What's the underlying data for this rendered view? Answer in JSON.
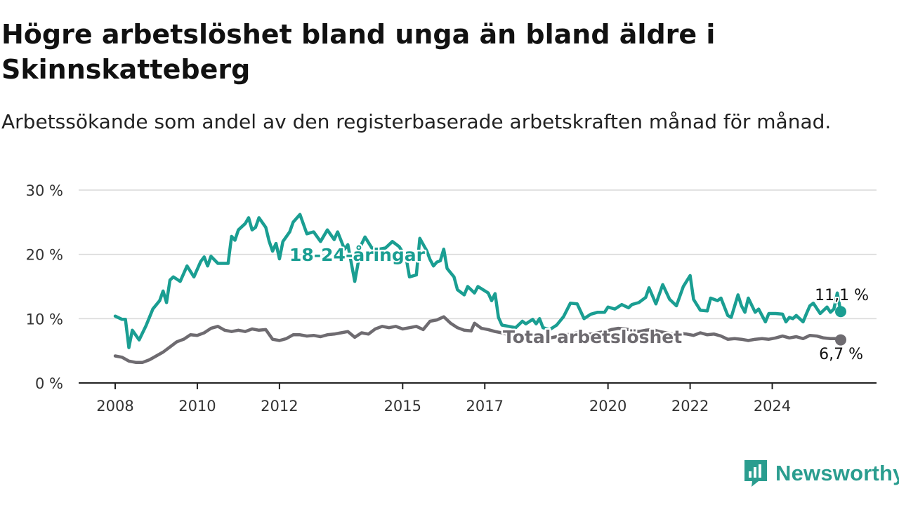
{
  "title": "Högre arbetslöshet bland unga än bland äldre i Skinnskatteberg",
  "subtitle": "Arbetssökande som andel av den registerbaserade arbetskraften månad för månad.",
  "brand": {
    "name": "Newsworthy",
    "icon": "newsworthy-logo-icon"
  },
  "colors": {
    "youth": "#1a9e92",
    "total": "#6e6b70",
    "grid": "#d9d9d9",
    "axis": "#222222"
  },
  "chart_data": {
    "type": "line",
    "x_ticks": [
      "2008",
      "2010",
      "2012",
      "2015",
      "2017",
      "2020",
      "2022",
      "2024"
    ],
    "y_ticks": [
      "0 %",
      "10 %",
      "20 %",
      "30 %"
    ],
    "ylim": [
      0,
      30
    ],
    "xlim": [
      "2008-01",
      "2025-09"
    ],
    "grid": true,
    "series": [
      {
        "name": "18-24-åringar",
        "end_label": "11,1 %",
        "points": [
          [
            "2008-01",
            10.4
          ],
          [
            "2008-03",
            9.9
          ],
          [
            "2008-04",
            9.9
          ],
          [
            "2008-05",
            5.5
          ],
          [
            "2008-06",
            8.2
          ],
          [
            "2008-08",
            6.7
          ],
          [
            "2008-10",
            8.9
          ],
          [
            "2008-12",
            11.5
          ],
          [
            "2009-02",
            12.8
          ],
          [
            "2009-03",
            14.3
          ],
          [
            "2009-04",
            12.5
          ],
          [
            "2009-05",
            16.0
          ],
          [
            "2009-06",
            16.5
          ],
          [
            "2009-08",
            15.8
          ],
          [
            "2009-10",
            18.2
          ],
          [
            "2009-12",
            16.5
          ],
          [
            "2010-02",
            18.9
          ],
          [
            "2010-03",
            19.6
          ],
          [
            "2010-04",
            18.2
          ],
          [
            "2010-05",
            19.7
          ],
          [
            "2010-07",
            18.6
          ],
          [
            "2010-10",
            18.6
          ],
          [
            "2010-11",
            22.8
          ],
          [
            "2010-12",
            22.2
          ],
          [
            "2011-01",
            23.8
          ],
          [
            "2011-03",
            24.8
          ],
          [
            "2011-04",
            25.7
          ],
          [
            "2011-05",
            23.8
          ],
          [
            "2011-06",
            24.2
          ],
          [
            "2011-07",
            25.7
          ],
          [
            "2011-09",
            24.2
          ],
          [
            "2011-10",
            22.0
          ],
          [
            "2011-11",
            20.5
          ],
          [
            "2011-12",
            21.7
          ],
          [
            "2012-01",
            19.3
          ],
          [
            "2012-02",
            22.0
          ],
          [
            "2012-04",
            23.5
          ],
          [
            "2012-05",
            25.0
          ],
          [
            "2012-07",
            26.2
          ],
          [
            "2012-09",
            23.2
          ],
          [
            "2012-11",
            23.5
          ],
          [
            "2013-01",
            22.0
          ],
          [
            "2013-03",
            23.8
          ],
          [
            "2013-05",
            22.3
          ],
          [
            "2013-06",
            23.5
          ],
          [
            "2013-08",
            20.8
          ],
          [
            "2013-09",
            21.5
          ],
          [
            "2013-11",
            15.8
          ],
          [
            "2014-01",
            21.6
          ],
          [
            "2014-02",
            22.7
          ],
          [
            "2014-04",
            21.0
          ],
          [
            "2014-06",
            20.8
          ],
          [
            "2014-08",
            21.0
          ],
          [
            "2014-10",
            22.0
          ],
          [
            "2014-12",
            21.2
          ],
          [
            "2015-02",
            19.5
          ],
          [
            "2015-03",
            16.5
          ],
          [
            "2015-05",
            16.8
          ],
          [
            "2015-06",
            22.5
          ],
          [
            "2015-08",
            20.6
          ],
          [
            "2015-09",
            19.2
          ],
          [
            "2015-10",
            18.2
          ],
          [
            "2015-11",
            18.8
          ],
          [
            "2015-12",
            19.0
          ],
          [
            "2016-01",
            20.8
          ],
          [
            "2016-02",
            17.8
          ],
          [
            "2016-04",
            16.5
          ],
          [
            "2016-05",
            14.5
          ],
          [
            "2016-07",
            13.7
          ],
          [
            "2016-08",
            15.0
          ],
          [
            "2016-09",
            14.5
          ],
          [
            "2016-10",
            14.0
          ],
          [
            "2016-11",
            15.0
          ],
          [
            "2017-02",
            14.0
          ],
          [
            "2017-03",
            12.8
          ],
          [
            "2017-04",
            13.9
          ],
          [
            "2017-05",
            10.2
          ],
          [
            "2017-06",
            9.0
          ],
          [
            "2017-08",
            8.8
          ],
          [
            "2017-10",
            8.6
          ],
          [
            "2017-12",
            9.6
          ],
          [
            "2018-01",
            9.2
          ],
          [
            "2018-03",
            9.9
          ],
          [
            "2018-04",
            9.2
          ],
          [
            "2018-05",
            10.0
          ],
          [
            "2018-06",
            8.6
          ],
          [
            "2018-08",
            8.3
          ],
          [
            "2018-10",
            9.0
          ],
          [
            "2018-12",
            10.3
          ],
          [
            "2019-02",
            12.4
          ],
          [
            "2019-04",
            12.3
          ],
          [
            "2019-06",
            10.0
          ],
          [
            "2019-08",
            10.7
          ],
          [
            "2019-10",
            11.0
          ],
          [
            "2019-12",
            11.0
          ],
          [
            "2020-01",
            11.8
          ],
          [
            "2020-03",
            11.5
          ],
          [
            "2020-05",
            12.2
          ],
          [
            "2020-07",
            11.7
          ],
          [
            "2020-08",
            12.2
          ],
          [
            "2020-10",
            12.5
          ],
          [
            "2020-12",
            13.3
          ],
          [
            "2021-01",
            14.8
          ],
          [
            "2021-03",
            12.3
          ],
          [
            "2021-05",
            15.3
          ],
          [
            "2021-07",
            13.0
          ],
          [
            "2021-09",
            12.0
          ],
          [
            "2021-11",
            15.0
          ],
          [
            "2022-01",
            16.7
          ],
          [
            "2022-02",
            13.0
          ],
          [
            "2022-04",
            11.3
          ],
          [
            "2022-06",
            11.2
          ],
          [
            "2022-07",
            13.2
          ],
          [
            "2022-09",
            12.8
          ],
          [
            "2022-10",
            13.2
          ],
          [
            "2022-12",
            10.5
          ],
          [
            "2023-01",
            10.2
          ],
          [
            "2023-03",
            13.7
          ],
          [
            "2023-04",
            12.0
          ],
          [
            "2023-05",
            11.0
          ],
          [
            "2023-06",
            13.2
          ],
          [
            "2023-08",
            11.0
          ],
          [
            "2023-09",
            11.5
          ],
          [
            "2023-11",
            9.5
          ],
          [
            "2023-12",
            10.8
          ],
          [
            "2024-02",
            10.8
          ],
          [
            "2024-04",
            10.7
          ],
          [
            "2024-05",
            9.5
          ],
          [
            "2024-06",
            10.2
          ],
          [
            "2024-07",
            10.0
          ],
          [
            "2024-08",
            10.5
          ],
          [
            "2024-10",
            9.5
          ],
          [
            "2024-11",
            10.8
          ],
          [
            "2024-12",
            12.0
          ],
          [
            "2025-01",
            12.4
          ],
          [
            "2025-03",
            10.8
          ],
          [
            "2025-05",
            11.8
          ],
          [
            "2025-06",
            11.0
          ],
          [
            "2025-07",
            11.5
          ],
          [
            "2025-08",
            14.0
          ],
          [
            "2025-09",
            11.1
          ]
        ]
      },
      {
        "name": "Total arbetslöshet",
        "end_label": "6,7 %",
        "points": [
          [
            "2008-01",
            4.2
          ],
          [
            "2008-03",
            4.0
          ],
          [
            "2008-05",
            3.4
          ],
          [
            "2008-07",
            3.2
          ],
          [
            "2008-09",
            3.2
          ],
          [
            "2008-11",
            3.6
          ],
          [
            "2009-01",
            4.2
          ],
          [
            "2009-03",
            4.8
          ],
          [
            "2009-05",
            5.6
          ],
          [
            "2009-07",
            6.4
          ],
          [
            "2009-09",
            6.8
          ],
          [
            "2009-11",
            7.5
          ],
          [
            "2010-01",
            7.4
          ],
          [
            "2010-03",
            7.8
          ],
          [
            "2010-05",
            8.5
          ],
          [
            "2010-07",
            8.8
          ],
          [
            "2010-09",
            8.2
          ],
          [
            "2010-11",
            8.0
          ],
          [
            "2011-01",
            8.2
          ],
          [
            "2011-03",
            8.0
          ],
          [
            "2011-05",
            8.4
          ],
          [
            "2011-07",
            8.2
          ],
          [
            "2011-09",
            8.3
          ],
          [
            "2011-11",
            6.8
          ],
          [
            "2012-01",
            6.6
          ],
          [
            "2012-03",
            6.9
          ],
          [
            "2012-05",
            7.5
          ],
          [
            "2012-07",
            7.5
          ],
          [
            "2012-09",
            7.3
          ],
          [
            "2012-11",
            7.4
          ],
          [
            "2013-01",
            7.2
          ],
          [
            "2013-03",
            7.5
          ],
          [
            "2013-05",
            7.6
          ],
          [
            "2013-07",
            7.8
          ],
          [
            "2013-09",
            8.0
          ],
          [
            "2013-11",
            7.1
          ],
          [
            "2014-01",
            7.8
          ],
          [
            "2014-03",
            7.6
          ],
          [
            "2014-05",
            8.4
          ],
          [
            "2014-07",
            8.8
          ],
          [
            "2014-09",
            8.6
          ],
          [
            "2014-11",
            8.8
          ],
          [
            "2015-01",
            8.4
          ],
          [
            "2015-03",
            8.6
          ],
          [
            "2015-05",
            8.8
          ],
          [
            "2015-07",
            8.3
          ],
          [
            "2015-09",
            9.6
          ],
          [
            "2015-11",
            9.8
          ],
          [
            "2016-01",
            10.3
          ],
          [
            "2016-03",
            9.3
          ],
          [
            "2016-05",
            8.6
          ],
          [
            "2016-07",
            8.2
          ],
          [
            "2016-09",
            8.1
          ],
          [
            "2016-10",
            9.3
          ],
          [
            "2016-12",
            8.5
          ],
          [
            "2017-02",
            8.3
          ],
          [
            "2017-04",
            8.0
          ],
          [
            "2017-06",
            7.8
          ],
          [
            "2017-08",
            7.5
          ],
          [
            "2017-10",
            7.3
          ],
          [
            "2017-12",
            7.5
          ],
          [
            "2018-02",
            7.6
          ],
          [
            "2018-04",
            7.4
          ],
          [
            "2018-06",
            7.3
          ],
          [
            "2018-08",
            7.0
          ],
          [
            "2018-10",
            7.2
          ],
          [
            "2018-12",
            7.4
          ],
          [
            "2019-02",
            7.6
          ],
          [
            "2019-04",
            7.8
          ],
          [
            "2019-06",
            7.5
          ],
          [
            "2019-08",
            7.6
          ],
          [
            "2019-10",
            7.8
          ],
          [
            "2019-12",
            8.0
          ],
          [
            "2020-02",
            8.3
          ],
          [
            "2020-04",
            8.5
          ],
          [
            "2020-06",
            8.4
          ],
          [
            "2020-08",
            8.2
          ],
          [
            "2020-10",
            8.0
          ],
          [
            "2020-12",
            8.2
          ],
          [
            "2021-02",
            8.3
          ],
          [
            "2021-04",
            8.0
          ],
          [
            "2021-06",
            7.8
          ],
          [
            "2021-08",
            7.6
          ],
          [
            "2021-10",
            7.7
          ],
          [
            "2021-12",
            7.6
          ],
          [
            "2022-02",
            7.4
          ],
          [
            "2022-04",
            7.8
          ],
          [
            "2022-06",
            7.5
          ],
          [
            "2022-08",
            7.6
          ],
          [
            "2022-10",
            7.3
          ],
          [
            "2022-12",
            6.8
          ],
          [
            "2023-02",
            6.9
          ],
          [
            "2023-04",
            6.8
          ],
          [
            "2023-06",
            6.6
          ],
          [
            "2023-08",
            6.8
          ],
          [
            "2023-10",
            6.9
          ],
          [
            "2023-12",
            6.8
          ],
          [
            "2024-02",
            7.0
          ],
          [
            "2024-04",
            7.3
          ],
          [
            "2024-06",
            7.0
          ],
          [
            "2024-08",
            7.2
          ],
          [
            "2024-10",
            6.9
          ],
          [
            "2024-12",
            7.4
          ],
          [
            "2025-02",
            7.3
          ],
          [
            "2025-04",
            7.0
          ],
          [
            "2025-06",
            6.9
          ],
          [
            "2025-08",
            6.9
          ],
          [
            "2025-09",
            6.7
          ]
        ]
      }
    ]
  }
}
